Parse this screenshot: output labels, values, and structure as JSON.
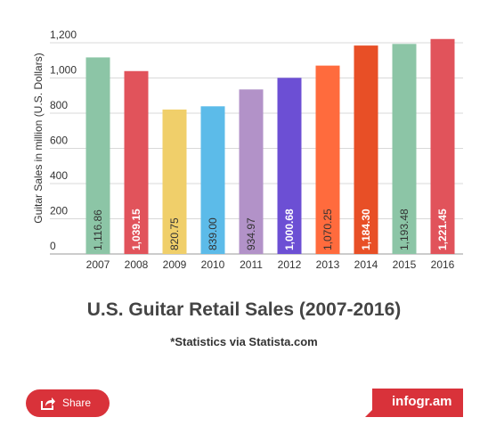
{
  "chart_data": {
    "type": "bar",
    "title": "U.S. Guitar Retail Sales (2007-2016)",
    "subtitle": "*Statistics via Statista.com",
    "xlabel": "",
    "ylabel": "Guitar Sales in million (U.S. Dollars)",
    "categories": [
      "2007",
      "2008",
      "2009",
      "2010",
      "2011",
      "2012",
      "2013",
      "2014",
      "2015",
      "2016"
    ],
    "values": [
      1116.86,
      1039.15,
      820.75,
      839.0,
      934.97,
      1000.68,
      1070.25,
      1184.3,
      1193.48,
      1221.45
    ],
    "data_labels": [
      "1,116.86",
      "1,039.15",
      "820.75",
      "839.00",
      "934.97",
      "1,000.68",
      "1,070.25",
      "1,184.30",
      "1,193.48",
      "1,221.45"
    ],
    "colors": [
      "#8cc5a6",
      "#e1535b",
      "#f0cf6a",
      "#5cbbe9",
      "#b292c8",
      "#6c4fd4",
      "#ff6b3d",
      "#e84f26",
      "#8cc5a6",
      "#e1535b"
    ],
    "label_colors": [
      "#333333",
      "#ffffff",
      "#333333",
      "#333333",
      "#333333",
      "#ffffff",
      "#333333",
      "#ffffff",
      "#333333",
      "#ffffff"
    ],
    "ylim": [
      0,
      1200
    ],
    "yticks": [
      0,
      200,
      400,
      600,
      800,
      1000,
      1200
    ],
    "ytick_labels": [
      "0",
      "200",
      "400",
      "600",
      "800",
      "1,000",
      "1,200"
    ],
    "grid": true,
    "legend": "none"
  },
  "footer": {
    "share_label": "Share",
    "brand_label": "infogr.am"
  },
  "colors": {
    "accent": "#d9323a",
    "title_text": "#444444",
    "axis_text": "#333333",
    "grid": "#d9d9d9"
  },
  "icons": {
    "share": "share-icon"
  }
}
